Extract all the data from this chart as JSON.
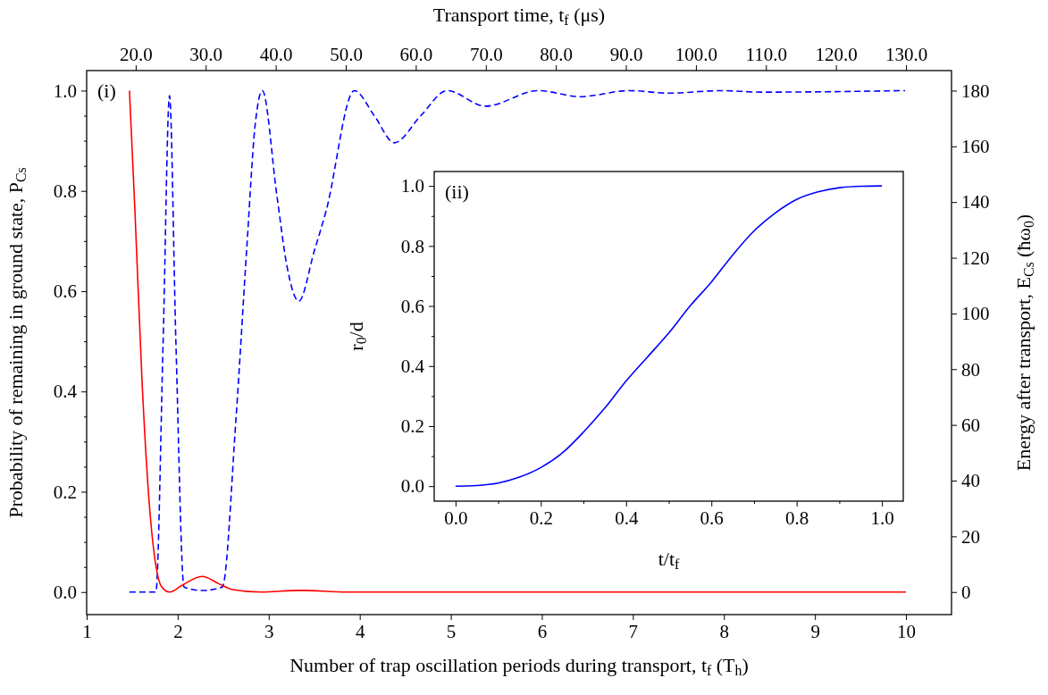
{
  "chart_data": [
    {
      "type": "line",
      "xlabel": "Number of trap oscillation periods during transport, t$_{f}$ (T$_{h}$)",
      "ylabel": "Probability of remaining in ground state, P$_{Cs}$",
      "y2label": "Energy after transport, E$_{Cs}$ (ħω$_{0}$)",
      "x2label": "Transport time, t$_{f}$ (μs)",
      "annotations": [
        "(i)"
      ],
      "xlim": [
        1,
        10.5
      ],
      "xticks": [
        1,
        2,
        3,
        4,
        5,
        6,
        7,
        8,
        9,
        10
      ],
      "x2lim": [
        13,
        136.5
      ],
      "x2ticks": [
        {
          "value": 20,
          "label": "20.0"
        },
        {
          "value": 30,
          "label": "30.0"
        },
        {
          "value": 40,
          "label": "40.0"
        },
        {
          "value": 50,
          "label": "50.0"
        },
        {
          "value": 60,
          "label": "60.0"
        },
        {
          "value": 70,
          "label": "70.0"
        },
        {
          "value": 80,
          "label": "80.0"
        },
        {
          "value": 90,
          "label": "90.0"
        },
        {
          "value": 100,
          "label": "100.0"
        },
        {
          "value": 110,
          "label": "110.0"
        },
        {
          "value": 120,
          "label": "120.0"
        },
        {
          "value": 130,
          "label": "130.0"
        }
      ],
      "ylim": [
        -0.045,
        1.04
      ],
      "yticks": [
        {
          "value": 0,
          "label": "0.0"
        },
        {
          "value": 0.05,
          "label": null
        },
        {
          "value": 0.1,
          "label": null
        },
        {
          "value": 0.15,
          "label": null
        },
        {
          "value": 0.2,
          "label": "0.2"
        },
        {
          "value": 0.25,
          "label": null
        },
        {
          "value": 0.3,
          "label": null
        },
        {
          "value": 0.35,
          "label": null
        },
        {
          "value": 0.4,
          "label": "0.4"
        },
        {
          "value": 0.45,
          "label": null
        },
        {
          "value": 0.5,
          "label": null
        },
        {
          "value": 0.55,
          "label": null
        },
        {
          "value": 0.6,
          "label": "0.6"
        },
        {
          "value": 0.65,
          "label": null
        },
        {
          "value": 0.7,
          "label": null
        },
        {
          "value": 0.75,
          "label": null
        },
        {
          "value": 0.8,
          "label": "0.8"
        },
        {
          "value": 0.85,
          "label": null
        },
        {
          "value": 0.9,
          "label": null
        },
        {
          "value": 0.95,
          "label": null
        },
        {
          "value": 1,
          "label": "1.0"
        }
      ],
      "y2lim": [
        -8.1,
        187.2
      ],
      "y2ticks": [
        0,
        20,
        40,
        60,
        80,
        100,
        120,
        140,
        160,
        180
      ],
      "series": [
        {
          "color": "#0000ff",
          "line_style": "dashed",
          "x": [
            1.47,
            1.76,
            1.84,
            1.91,
            1.98,
            2.07,
            2.27,
            2.49,
            2.64,
            2.76,
            2.85,
            2.93,
            3.09,
            3.2,
            3.33,
            3.5,
            3.63,
            3.94,
            4.16,
            4.38,
            4.67,
            4.96,
            5.38,
            5.96,
            6.42,
            6.96,
            7.4,
            7.96,
            8.41,
            9.99
          ],
          "values": [
            0,
            0,
            0.5,
            0.99,
            0.5,
            0.01,
            0.003,
            0.01,
            0.345,
            0.69,
            0.93,
            1.0,
            0.79,
            0.65,
            0.58,
            0.68,
            0.76,
            1.0,
            0.95,
            0.896,
            0.95,
            1.0,
            0.969,
            1.0,
            0.988,
            1.0,
            0.995,
            1.0,
            0.997,
            1.0
          ]
        },
        {
          "color": "#ff0000",
          "axis": "y2",
          "x": [
            1.47,
            1.53,
            1.61,
            1.69,
            1.76,
            1.82,
            1.91,
            2.05,
            2.27,
            2.45,
            2.6,
            2.91,
            3.35,
            3.86,
            10.0
          ],
          "values": [
            180,
            137,
            74.5,
            30.8,
            9.6,
            2.1,
            0,
            2.5,
            5.6,
            3,
            0.9,
            0,
            0.6,
            0,
            0
          ]
        }
      ]
    },
    {
      "type": "line",
      "xlabel": "t/t$_{f}$",
      "ylabel": "r$_{0}$/d",
      "annotations": [
        "(ii)"
      ],
      "xlim": [
        -0.05,
        1.05
      ],
      "xticks": [
        {
          "value": 0,
          "label": "0.0"
        },
        {
          "value": 0.1,
          "label": null
        },
        {
          "value": 0.2,
          "label": "0.2"
        },
        {
          "value": 0.3,
          "label": null
        },
        {
          "value": 0.4,
          "label": "0.4"
        },
        {
          "value": 0.5,
          "label": null
        },
        {
          "value": 0.6,
          "label": "0.6"
        },
        {
          "value": 0.7,
          "label": null
        },
        {
          "value": 0.8,
          "label": "0.8"
        },
        {
          "value": 0.9,
          "label": null
        },
        {
          "value": 1,
          "label": "1.0"
        }
      ],
      "ylim": [
        -0.05,
        1.048
      ],
      "yticks": [
        {
          "value": 0,
          "label": "0.0"
        },
        {
          "value": 0.1,
          "label": null
        },
        {
          "value": 0.2,
          "label": "0.2"
        },
        {
          "value": 0.3,
          "label": null
        },
        {
          "value": 0.4,
          "label": "0.4"
        },
        {
          "value": 0.5,
          "label": null
        },
        {
          "value": 0.6,
          "label": "0.6"
        },
        {
          "value": 0.7,
          "label": null
        },
        {
          "value": 0.8,
          "label": "0.8"
        },
        {
          "value": 0.9,
          "label": null
        },
        {
          "value": 1,
          "label": "1.0"
        }
      ],
      "series": [
        {
          "color": "#0000ff",
          "x": [
            0,
            0.05,
            0.1,
            0.15,
            0.2,
            0.25,
            0.3,
            0.35,
            0.4,
            0.45,
            0.5,
            0.55,
            0.6,
            0.65,
            0.7,
            0.75,
            0.8,
            0.85,
            0.9,
            0.95,
            1.0
          ],
          "values": [
            0,
            0.002,
            0.01,
            0.03,
            0.062,
            0.11,
            0.18,
            0.26,
            0.35,
            0.43,
            0.51,
            0.6,
            0.68,
            0.77,
            0.85,
            0.91,
            0.955,
            0.98,
            0.994,
            0.999,
            1.0
          ]
        }
      ]
    }
  ]
}
